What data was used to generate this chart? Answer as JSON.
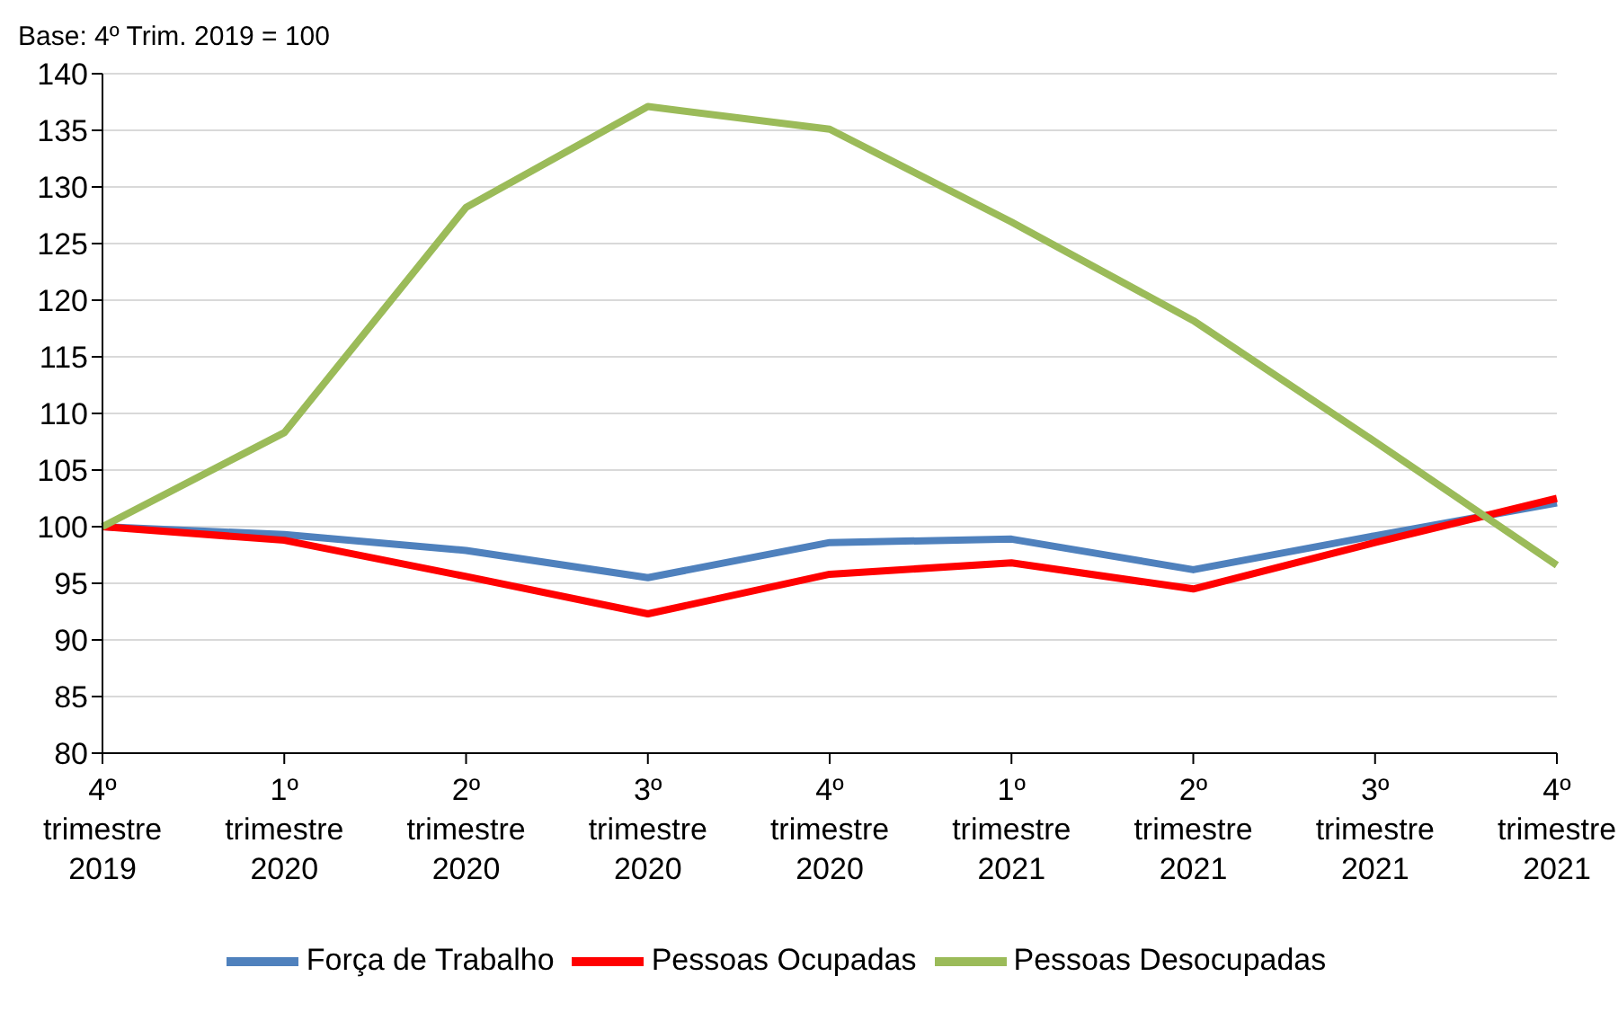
{
  "chart_data": {
    "type": "line",
    "title": "Base: 4º Trim. 2019 = 100",
    "categories": [
      "4º\ntrimestre\n2019",
      "1º\ntrimestre\n2020",
      "2º\ntrimestre\n2020",
      "3º\ntrimestre\n2020",
      "4º\ntrimestre\n2020",
      "1º\ntrimestre\n2021",
      "2º\ntrimestre\n2021",
      "3º\ntrimestre\n2021",
      "4º\ntrimestre\n2021"
    ],
    "series": [
      {
        "name": "Força de Trabalho",
        "color": "#4f81bd",
        "values": [
          100,
          99.3,
          97.9,
          95.5,
          98.6,
          98.9,
          96.2,
          99.2,
          102.1
        ]
      },
      {
        "name": "Pessoas Ocupadas",
        "color": "#ff0000",
        "values": [
          100,
          98.8,
          95.6,
          92.3,
          95.8,
          96.8,
          94.5,
          98.6,
          102.5
        ]
      },
      {
        "name": "Pessoas Desocupadas",
        "color": "#9bbb59",
        "values": [
          100,
          108.3,
          128.2,
          137.1,
          135.1,
          126.9,
          118.2,
          107.5,
          96.6
        ]
      }
    ],
    "ylim": [
      80,
      140
    ],
    "yticks": [
      80,
      85,
      90,
      95,
      100,
      105,
      110,
      115,
      120,
      125,
      130,
      135,
      140
    ],
    "grid": "y",
    "legend": "bottom",
    "marker": "none",
    "line_style": "solid"
  }
}
